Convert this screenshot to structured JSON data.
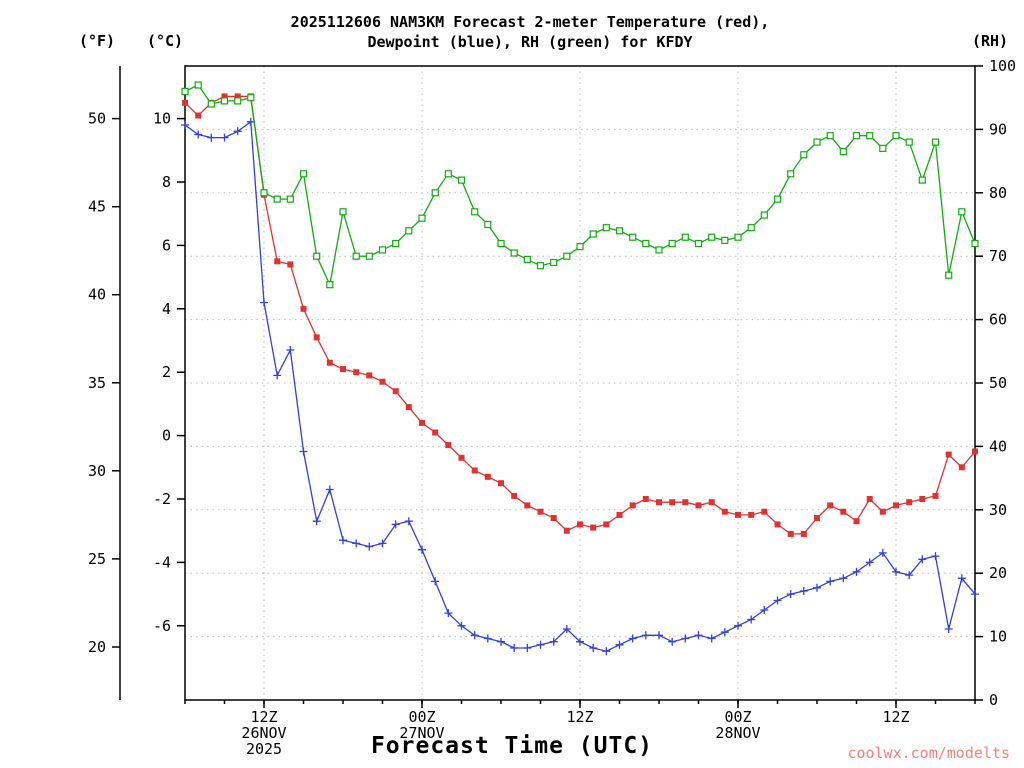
{
  "title": {
    "line1": "2025112606 NAM3KM Forecast 2-meter Temperature (red),",
    "line2": "Dewpoint (blue), RH (green) for KFDY"
  },
  "axes": {
    "fahrenheit": {
      "label": "(°F)",
      "ticks": [
        50,
        45,
        40,
        35,
        30,
        25,
        20
      ]
    },
    "celsius": {
      "label": "(°C)",
      "ticks": [
        10,
        8,
        6,
        4,
        2,
        0,
        -2,
        -4,
        -6
      ]
    },
    "rh": {
      "label": "(RH)",
      "ticks": [
        100,
        90,
        80,
        70,
        60,
        50,
        40,
        30,
        20,
        10,
        0
      ]
    },
    "x": {
      "label": "Forecast Time (UTC)",
      "major_ticks": [
        {
          "hour": 6,
          "time": "12Z",
          "date": "26NOV",
          "year": "2025"
        },
        {
          "hour": 18,
          "time": "00Z",
          "date": "27NOV",
          "year": ""
        },
        {
          "hour": 30,
          "time": "12Z",
          "date": "",
          "year": ""
        },
        {
          "hour": 42,
          "time": "00Z",
          "date": "28NOV",
          "year": ""
        },
        {
          "hour": 54,
          "time": "12Z",
          "date": "",
          "year": ""
        }
      ]
    }
  },
  "watermark": {
    "text": "coolwx.com/modelts",
    "color": "#f4837d"
  },
  "chart_data": {
    "type": "line",
    "title": "2025112606 NAM3KM Forecast 2-meter Temperature (red), Dewpoint (blue), RH (green) for KFDY",
    "station": "KFDY",
    "model_run": "2025112606 NAM3KM",
    "x_unit": "forecast hours after 06Z 26NOV2025",
    "x_range_hours": [
      0,
      60
    ],
    "rh_ylim": [
      0,
      100
    ],
    "celsius_alignment": {
      "rh_equiv_at_0C": 41.7,
      "rh_equiv_per_C": 5
    },
    "grid": "dotted horizontal every 10 RH, vertical every 12 h",
    "x_hours": [
      0,
      1,
      2,
      3,
      4,
      5,
      6,
      7,
      8,
      9,
      10,
      11,
      12,
      13,
      14,
      15,
      16,
      17,
      18,
      19,
      20,
      21,
      22,
      23,
      24,
      25,
      26,
      27,
      28,
      29,
      30,
      31,
      32,
      33,
      34,
      35,
      36,
      37,
      38,
      39,
      40,
      41,
      42,
      43,
      44,
      45,
      46,
      47,
      48,
      49,
      50,
      51,
      52,
      53,
      54,
      55,
      56,
      57,
      58,
      59,
      60
    ],
    "series": [
      {
        "name": "2-meter Temperature",
        "axis": "celsius",
        "unit": "°C",
        "color": "#e03232",
        "marker": "filled-square",
        "values": [
          10.5,
          10.1,
          10.5,
          10.7,
          10.7,
          10.7,
          7.6,
          5.5,
          5.4,
          4.0,
          3.1,
          2.3,
          2.1,
          2.0,
          1.9,
          1.7,
          1.4,
          0.9,
          0.4,
          0.1,
          -0.3,
          -0.7,
          -1.1,
          -1.3,
          -1.5,
          -1.9,
          -2.2,
          -2.4,
          -2.6,
          -3.0,
          -2.8,
          -2.9,
          -2.8,
          -2.5,
          -2.2,
          -2.0,
          -2.1,
          -2.1,
          -2.1,
          -2.2,
          -2.1,
          -2.4,
          -2.5,
          -2.5,
          -2.4,
          -2.8,
          -3.1,
          -3.1,
          -2.6,
          -2.2,
          -2.4,
          -2.7,
          -2.0,
          -2.4,
          -2.2,
          -2.1,
          -2.0,
          -1.9,
          -0.6,
          -1.0,
          -0.5
        ]
      },
      {
        "name": "Dewpoint",
        "axis": "celsius",
        "unit": "°C",
        "color": "#3440d8",
        "marker": "plus",
        "values": [
          9.8,
          9.5,
          9.4,
          9.4,
          9.6,
          9.9,
          4.2,
          1.9,
          2.7,
          -0.5,
          -2.7,
          -1.7,
          -3.3,
          -3.4,
          -3.5,
          -3.4,
          -2.8,
          -2.7,
          -3.6,
          -4.6,
          -5.6,
          -6.0,
          -6.3,
          -6.4,
          -6.5,
          -6.7,
          -6.7,
          -6.6,
          -6.5,
          -6.1,
          -6.5,
          -6.7,
          -6.8,
          -6.6,
          -6.4,
          -6.3,
          -6.3,
          -6.5,
          -6.4,
          -6.3,
          -6.4,
          -6.2,
          -6.0,
          -5.8,
          -5.5,
          -5.2,
          -5.0,
          -4.9,
          -4.8,
          -4.6,
          -4.5,
          -4.3,
          -4.0,
          -3.7,
          -4.3,
          -4.4,
          -3.9,
          -3.8,
          -6.1,
          -4.5,
          -5.0
        ]
      },
      {
        "name": "Relative Humidity",
        "axis": "rh",
        "unit": "%",
        "color": "#12ac12",
        "marker": "open-square",
        "values": [
          96,
          97,
          94,
          94.5,
          94.5,
          95,
          80,
          79,
          79,
          83,
          70,
          65.5,
          77,
          70,
          70,
          71,
          72,
          74,
          76,
          80,
          83,
          82,
          77,
          75,
          72,
          70.5,
          69.5,
          68.5,
          69,
          70,
          71.5,
          73.5,
          74.5,
          74,
          73,
          72,
          71,
          72,
          73,
          72,
          73,
          72.5,
          73,
          74.5,
          76.5,
          79,
          83,
          86,
          88,
          89,
          86.5,
          89,
          89,
          87,
          89,
          88,
          82,
          88,
          67,
          77,
          72
        ]
      }
    ]
  }
}
